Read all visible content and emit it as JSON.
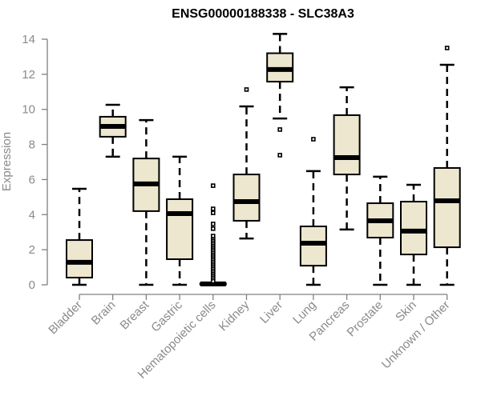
{
  "chart_data": {
    "type": "box",
    "title": "ENSG00000188338 - SLC38A3",
    "xlabel": "",
    "ylabel": "Expression",
    "ylim": [
      0,
      14
    ],
    "yticks": [
      0,
      2,
      4,
      6,
      8,
      10,
      12,
      14
    ],
    "grid": false,
    "legend": "none",
    "box_fill": "#ECE7CE",
    "categories": [
      "Bladder",
      "Brain",
      "Breast",
      "Gastric",
      "Hematopoietic cells",
      "Kidney",
      "Liver",
      "Lung",
      "Pancreas",
      "Prostate",
      "Skin",
      "Unknown / Other"
    ],
    "boxes": [
      {
        "name": "Bladder",
        "whisker_low": 0.0,
        "q1": 0.41,
        "median": 1.28,
        "q3": 2.55,
        "whisker_high": 5.47,
        "outliers": []
      },
      {
        "name": "Brain",
        "whisker_low": 7.3,
        "q1": 8.44,
        "median": 9.03,
        "q3": 9.58,
        "whisker_high": 10.26,
        "outliers": []
      },
      {
        "name": "Breast",
        "whisker_low": 0.0,
        "q1": 4.2,
        "median": 5.75,
        "q3": 7.2,
        "whisker_high": 9.39,
        "outliers": []
      },
      {
        "name": "Gastric",
        "whisker_low": 0.0,
        "q1": 1.46,
        "median": 4.06,
        "q3": 4.88,
        "whisker_high": 7.3,
        "outliers": []
      },
      {
        "name": "Hematopoietic cells",
        "whisker_low": 0.0,
        "q1": 0.02,
        "median": 0.05,
        "q3": 0.08,
        "whisker_high": 0.12,
        "outliers": [
          5.65,
          4.33,
          4.1,
          3.47,
          3.2,
          2.78,
          2.6,
          2.5,
          2.4,
          2.3,
          2.2,
          2.1,
          2.0,
          1.9,
          1.8,
          1.7,
          1.6,
          1.5,
          1.4,
          1.3,
          1.2,
          1.1,
          1.0,
          0.9,
          0.8,
          0.7,
          0.6,
          0.5,
          0.4,
          0.3,
          0.2
        ]
      },
      {
        "name": "Kidney",
        "whisker_low": 2.64,
        "q1": 3.65,
        "median": 4.74,
        "q3": 6.29,
        "whisker_high": 10.17,
        "outliers": [
          11.13
        ]
      },
      {
        "name": "Liver",
        "whisker_low": 9.48,
        "q1": 11.58,
        "median": 12.27,
        "q3": 13.2,
        "whisker_high": 14.3,
        "outliers": [
          8.85,
          7.39
        ]
      },
      {
        "name": "Lung",
        "whisker_low": 0.0,
        "q1": 1.09,
        "median": 2.37,
        "q3": 3.33,
        "whisker_high": 6.48,
        "outliers": [
          8.3
        ]
      },
      {
        "name": "Pancreas",
        "whisker_low": 3.15,
        "q1": 6.29,
        "median": 7.25,
        "q3": 9.67,
        "whisker_high": 11.26,
        "outliers": []
      },
      {
        "name": "Prostate",
        "whisker_low": 0.0,
        "q1": 2.69,
        "median": 3.65,
        "q3": 4.65,
        "whisker_high": 6.16,
        "outliers": []
      },
      {
        "name": "Skin",
        "whisker_low": 0.0,
        "q1": 1.73,
        "median": 3.06,
        "q3": 4.74,
        "whisker_high": 5.7,
        "outliers": []
      },
      {
        "name": "Unknown / Other",
        "whisker_low": 0.0,
        "q1": 2.14,
        "median": 4.79,
        "q3": 6.66,
        "whisker_high": 12.54,
        "outliers": [
          13.5
        ]
      }
    ]
  }
}
